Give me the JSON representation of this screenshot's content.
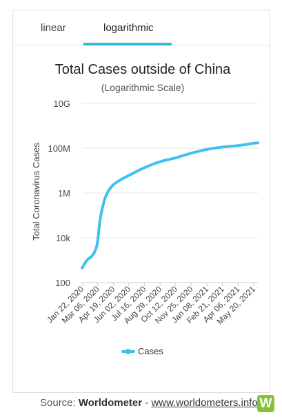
{
  "tabs": [
    {
      "label": "linear",
      "active": false
    },
    {
      "label": "logarithmic",
      "active": true
    }
  ],
  "footer": {
    "prefix": "Source: ",
    "source": "Worldometer",
    "separator": " - ",
    "link_text": "www.worldometers.info",
    "logo_letter": "W"
  },
  "colors": {
    "accent": "#2fb8ea",
    "series": "#3fc1ee",
    "logo": "#85c23b"
  },
  "chart_data": {
    "type": "line",
    "title": "Total Cases outside of China",
    "subtitle": "(Logarithmic Scale)",
    "ylabel": "Total Coronavirus Cases",
    "xlabel": "",
    "yscale": "log",
    "ylim": [
      100,
      10000000000
    ],
    "y_ticks": [
      {
        "value": 100,
        "label": "100"
      },
      {
        "value": 10000,
        "label": "10k"
      },
      {
        "value": 1000000,
        "label": "1M"
      },
      {
        "value": 100000000,
        "label": "100M"
      },
      {
        "value": 10000000000,
        "label": "10G"
      }
    ],
    "x_tick_labels": [
      "Jan 22, 2020",
      "Mar 06, 2020",
      "Apr 19, 2020",
      "Jun 02, 2020",
      "Jul 16, 2020",
      "Aug 29, 2020",
      "Oct 12, 2020",
      "Nov 25, 2020",
      "Jan 08, 2021",
      "Feb 21, 2021",
      "Apr 06, 2021",
      "May 20, 2021"
    ],
    "grid": true,
    "legend_position": "bottom",
    "series": [
      {
        "name": "Cases",
        "x": [
          "Jan 22, 2020",
          "Feb 05, 2020",
          "Feb 20, 2020",
          "Mar 01, 2020",
          "Mar 06, 2020",
          "Mar 12, 2020",
          "Mar 19, 2020",
          "Mar 27, 2020",
          "Apr 05, 2020",
          "Apr 19, 2020",
          "May 06, 2020",
          "Jun 02, 2020",
          "Jul 16, 2020",
          "Aug 29, 2020",
          "Oct 12, 2020",
          "Nov 25, 2020",
          "Jan 08, 2021",
          "Feb 21, 2021",
          "Apr 06, 2021",
          "May 20, 2021",
          "Jun 01, 2021"
        ],
        "y": [
          450,
          1000,
          1600,
          3200,
          7000,
          50000,
          200000,
          600000,
          1200000,
          2300000,
          3600000,
          6100000,
          13500000,
          25000000,
          37000000,
          60000000,
          88000000,
          112000000,
          131000000,
          165000000,
          172000000
        ]
      }
    ]
  }
}
